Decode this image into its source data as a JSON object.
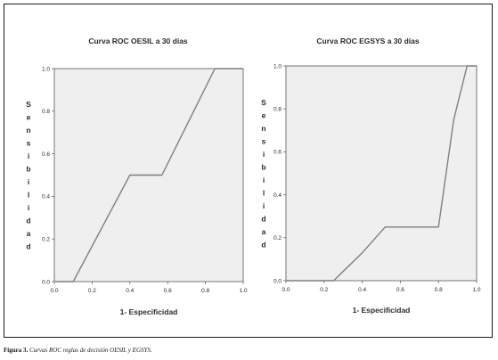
{
  "caption": {
    "label": "Figura 3.",
    "text": "Curvas ROC reglas de decisión OESIL y EGSYS."
  },
  "colors": {
    "plot_bg": "#efefef",
    "line": "#7f7f7f",
    "text": "#2a2a2a"
  },
  "chart_data": [
    {
      "type": "line",
      "title": "Curva ROC OESIL a 30 días",
      "xlabel": "1- Especificidad",
      "ylabel": "Sensibilidad",
      "xlim": [
        0,
        1
      ],
      "ylim": [
        0,
        1
      ],
      "xticks": [
        "0.0",
        "0.2",
        "0.4",
        "0.6",
        "0.8",
        "1.0"
      ],
      "yticks": [
        "0.0",
        "0.2",
        "0.4",
        "0.6",
        "0.8",
        "1.0"
      ],
      "grid": false,
      "series": [
        {
          "x": [
            0.0,
            0.1,
            0.4,
            0.57,
            0.85,
            1.0
          ],
          "y": [
            0.0,
            0.0,
            0.5,
            0.5,
            1.0,
            1.0
          ]
        }
      ]
    },
    {
      "type": "line",
      "title": "Curva ROC EGSYS a 30 días",
      "xlabel": "1- Especificidad",
      "ylabel": "Sensibilidad",
      "xlim": [
        0,
        1
      ],
      "ylim": [
        0,
        1
      ],
      "xticks": [
        "0.0",
        "0.2",
        "0.4",
        "0.6",
        "0.8",
        "1.0"
      ],
      "yticks": [
        "0.0",
        "0.2",
        "0.4",
        "0.6",
        "0.8",
        "1.0"
      ],
      "grid": false,
      "series": [
        {
          "x": [
            0.0,
            0.25,
            0.4,
            0.52,
            0.8,
            0.88,
            0.95,
            1.0
          ],
          "y": [
            0.0,
            0.0,
            0.13,
            0.25,
            0.25,
            0.75,
            1.0,
            1.0
          ]
        }
      ]
    }
  ]
}
